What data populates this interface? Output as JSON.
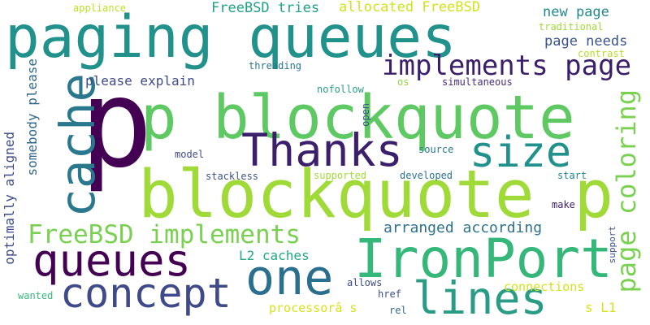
{
  "words": {
    "w01": {
      "text": "paging queues",
      "color": "#21918c"
    },
    "w02": {
      "text": "p",
      "color": "#440154"
    },
    "w03": {
      "text": "p blockquote",
      "color": "#5ec962"
    },
    "w04": {
      "text": "blockquote p",
      "color": "#a0da39"
    },
    "w05": {
      "text": "Thanks",
      "color": "#3b1f6b"
    },
    "w06": {
      "text": "size",
      "color": "#21918c"
    },
    "w07": {
      "text": "cache",
      "color": "#2a788e"
    },
    "w08": {
      "text": "implements page",
      "color": "#3b1f6b"
    },
    "w09": {
      "text": "IronPort",
      "color": "#35b779"
    },
    "w10": {
      "text": "queues",
      "color": "#440154"
    },
    "w11": {
      "text": "one",
      "color": "#2a6f8e"
    },
    "w12": {
      "text": "concept",
      "color": "#3e4a89"
    },
    "w13": {
      "text": "lines",
      "color": "#2a9c85"
    },
    "w14": {
      "text": "FreeBSD implements",
      "color": "#7ad151"
    },
    "w15": {
      "text": "page coloring",
      "color": "#7ad151"
    },
    "w16": {
      "text": "optimally aligned",
      "color": "#3e4a89"
    },
    "w17": {
      "text": "somebody please",
      "color": "#31688e"
    },
    "w18": {
      "text": "FreeBSD tries",
      "color": "#1fa088"
    },
    "w19": {
      "text": "allocated FreeBSD",
      "color": "#d2e21b"
    },
    "w20": {
      "text": "new page",
      "color": "#23878e"
    },
    "w21": {
      "text": "page needs",
      "color": "#3b528b"
    },
    "w22": {
      "text": "please explain",
      "color": "#3e4a89"
    },
    "w23": {
      "text": "arranged according",
      "color": "#2c728e"
    },
    "w24": {
      "text": "L2 caches",
      "color": "#22a884"
    },
    "w25": {
      "text": "connections",
      "color": "#d2e21b"
    },
    "w26": {
      "text": "processorâ s",
      "color": "#d8e219"
    },
    "w27": {
      "text": "s L1",
      "color": "#d8e219"
    },
    "w28": {
      "text": "appliance",
      "color": "#bddf26"
    },
    "w29": {
      "text": "traditional",
      "color": "#a0da39"
    },
    "w30": {
      "text": "contrast",
      "color": "#b5de2b"
    },
    "w31": {
      "text": "threading",
      "color": "#2a788e"
    },
    "w32": {
      "text": "nofollow",
      "color": "#2a9c85"
    },
    "w33": {
      "text": "os",
      "color": "#90d743"
    },
    "w34": {
      "text": "simultaneous",
      "color": "#472d7b"
    },
    "w35": {
      "text": "open",
      "color": "#3b528b"
    },
    "w36": {
      "text": "model",
      "color": "#3e4a89"
    },
    "w37": {
      "text": "source",
      "color": "#2a788e"
    },
    "w38": {
      "text": "stackless",
      "color": "#3b528b"
    },
    "w39": {
      "text": "supported",
      "color": "#a0da39"
    },
    "w40": {
      "text": "developed",
      "color": "#2c728e"
    },
    "w41": {
      "text": "start",
      "color": "#26828e"
    },
    "w42": {
      "text": "make",
      "color": "#3b1f6b"
    },
    "w43": {
      "text": "support",
      "color": "#3b528b"
    },
    "w44": {
      "text": "allows",
      "color": "#3e4a89"
    },
    "w45": {
      "text": "href",
      "color": "#3b528b"
    },
    "w46": {
      "text": "rel",
      "color": "#31688e"
    },
    "w47": {
      "text": "wanted",
      "color": "#35b779"
    }
  }
}
